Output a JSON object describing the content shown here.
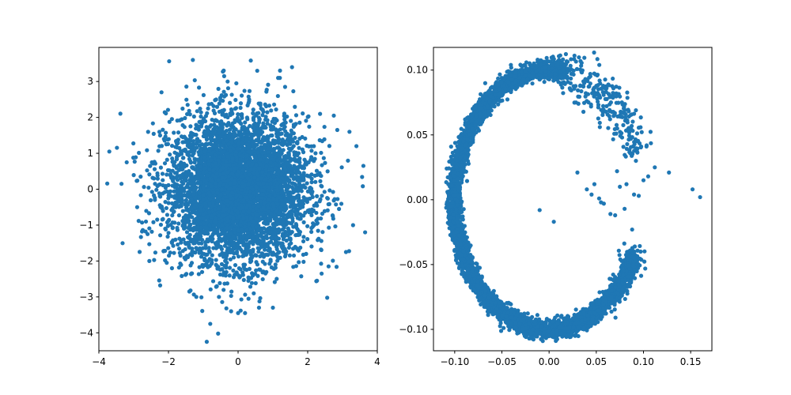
{
  "chart_data": [
    {
      "type": "scatter",
      "title": "",
      "xlabel": "",
      "ylabel": "",
      "xlim": [
        -4.0,
        4.0
      ],
      "ylim": [
        -4.5,
        3.95
      ],
      "xticks": [
        -4,
        -2,
        0,
        2,
        4
      ],
      "xtick_labels": [
        "−4",
        "−2",
        "0",
        "2",
        "4"
      ],
      "yticks": [
        -4,
        -3,
        -2,
        -1,
        0,
        1,
        2,
        3
      ],
      "ytick_labels": [
        "−4",
        "−3",
        "−2",
        "−1",
        "0",
        "1",
        "2",
        "3"
      ],
      "grid": false,
      "color": "#1f77b4",
      "series": [
        {
          "distribution": "isotropic Gaussian cloud (~5000 points)",
          "x": [
            -3.7,
            -3.35,
            -3.2,
            -2.9,
            -2.8,
            3.4,
            3.6,
            3.65,
            3.1,
            3.2,
            -1.3,
            1.55,
            -0.8,
            -0.9,
            0.55,
            0.6,
            1.15,
            1.2,
            -0.4,
            -0.3,
            0.0,
            0.2,
            0.45,
            -0.55,
            -1.9,
            -2.05,
            -2.6,
            -2.55,
            2.4,
            2.6,
            2.75,
            2.85,
            2.9,
            -1.45,
            -1.4,
            -1.2,
            -0.2,
            0.3,
            1.0,
            1.35,
            -2.2,
            -0.05
          ],
          "y": [
            1.05,
            0.15,
            0.75,
            -0.5,
            0.35,
            1.2,
            0.65,
            -1.2,
            -1.75,
            1.6,
            3.6,
            3.4,
            -3.75,
            -4.25,
            3.3,
            -3.3,
            3.1,
            3.1,
            3.15,
            3.0,
            -3.45,
            -3.45,
            -2.9,
            -3.0,
            -2.2,
            -2.05,
            -1.25,
            -2.0,
            -2.35,
            -2.15,
            2.05,
            1.65,
            -0.55,
            2.35,
            -2.85,
            -3.0,
            -3.4,
            -3.05,
            -3.3,
            2.85,
            2.7,
            2.95
          ]
        }
      ]
    },
    {
      "type": "scatter",
      "title": "",
      "xlabel": "",
      "ylabel": "",
      "xlim": [
        -0.1225,
        0.1725
      ],
      "ylim": [
        -0.1165,
        0.1175
      ],
      "xticks": [
        -0.1,
        -0.05,
        0.0,
        0.05,
        0.1,
        0.15
      ],
      "xtick_labels": [
        "−0.10",
        "−0.05",
        "0.00",
        "0.05",
        "0.10",
        "0.15"
      ],
      "yticks": [
        -0.1,
        -0.05,
        0.0,
        0.05,
        0.1
      ],
      "ytick_labels": [
        "−0.10",
        "−0.05",
        "0.00",
        "0.05",
        "0.10"
      ],
      "grid": false,
      "color": "#1f77b4",
      "series": [
        {
          "distribution": "C-shaped ring of radius ~0.1 centred at origin, dense on left side, scattered tail at upper right",
          "x": [
            -0.01,
            0.005,
            0.152,
            0.16,
            0.127,
            0.112,
            0.09,
            0.08,
            0.088,
            0.048,
            0.053,
            0.058,
            0.03,
            0.045,
            0.065,
            0.07,
            0.095,
            0.1,
            0.04,
            0.055,
            0.075,
            0.082,
            0.105,
            0.072,
            0.092
          ],
          "y": [
            -0.008,
            -0.017,
            0.008,
            0.002,
            0.021,
            0.025,
            0.004,
            -0.007,
            -0.023,
            0.012,
            0.001,
            -0.003,
            0.021,
            0.004,
            -0.011,
            -0.012,
            0.003,
            0.015,
            0.008,
            -0.002,
            0.01,
            0.012,
            0.018,
            0.022,
            0.03
          ]
        }
      ]
    }
  ]
}
